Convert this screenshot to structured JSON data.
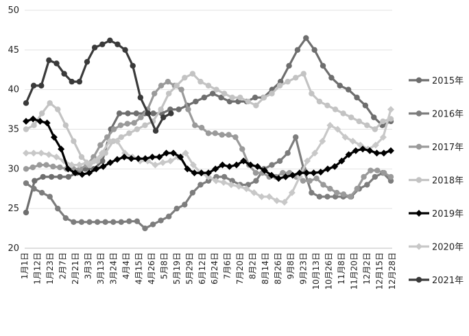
{
  "chart_data": {
    "type": "line",
    "title": "",
    "xlabel": "",
    "ylabel": "",
    "ylim": [
      20,
      50
    ],
    "yticks": [
      20,
      25,
      30,
      35,
      40,
      45,
      50
    ],
    "grid": "horizontal",
    "legend_position": "right",
    "x_tick_labels": [
      "1月1日",
      "1月12日",
      "1月23日",
      "2月7日",
      "2月21日",
      "3月3日",
      "3月13日",
      "3月24日",
      "4月4日",
      "4月15日",
      "4月26日",
      "5月8日",
      "5月19日",
      "5月29日",
      "6月12日",
      "6月24日",
      "7月6日",
      "7月20日",
      "8月2日",
      "8月14日",
      "8月26日",
      "9月8日",
      "9月23日",
      "10月13日",
      "10月26日",
      "11月8日",
      "11月20日",
      "12月2日",
      "12月15日",
      "12月28日"
    ],
    "series": [
      {
        "name": "2015年",
        "color": "#6e6e6e",
        "marker": "circle",
        "values": [
          24.5,
          28.5,
          29,
          29,
          29,
          29,
          29.5,
          30,
          30,
          31,
          35,
          37,
          37,
          37,
          37,
          37,
          37,
          37.5,
          37.5,
          38,
          38.5,
          39,
          39.5,
          39,
          38.5,
          38.5,
          38.5,
          39,
          39,
          40,
          41,
          43,
          45,
          46.5,
          45,
          43,
          41.5,
          40.5,
          40,
          39,
          38,
          36.5,
          35.5,
          36
        ]
      },
      {
        "name": "2016年",
        "color": "#7d7d7d",
        "marker": "circle",
        "values": [
          28.2,
          27.5,
          27,
          26.5,
          25,
          23.8,
          23.3,
          23.3,
          23.3,
          23.3,
          23.3,
          23.3,
          23.3,
          23.4,
          23.4,
          22.5,
          23,
          23.5,
          24,
          25,
          25.5,
          27,
          28,
          28.5,
          29,
          29,
          28.5,
          28,
          28,
          28.5,
          30,
          30.5,
          31,
          32,
          34,
          30,
          27,
          26.5,
          26.5,
          26.5,
          26.5,
          26.5,
          27.5,
          28,
          29,
          29.5,
          28.5
        ]
      },
      {
        "name": "2017年",
        "color": "#9a9a9a",
        "marker": "circle",
        "values": [
          30,
          30.2,
          30.5,
          30.5,
          30.3,
          30.2,
          30,
          30,
          30,
          30.5,
          31.5,
          33,
          34,
          35,
          35.5,
          35.7,
          35.8,
          36.5,
          37.5,
          39.5,
          40.5,
          41,
          40.5,
          40,
          37.5,
          35.5,
          35.2,
          34.5,
          34.5,
          34.3,
          34.3,
          34,
          32.5,
          30.5,
          29.5,
          29.5,
          29,
          29,
          29.5,
          29.5,
          29,
          28.5,
          28.5,
          28.8,
          28,
          27.5,
          27,
          26.8,
          26.5,
          27.5,
          29,
          29.8,
          29.8,
          29.5,
          29
        ]
      },
      {
        "name": "2018年",
        "color": "#c3c3c3",
        "marker": "circle",
        "values": [
          35,
          35.5,
          37,
          38.3,
          37.5,
          35.5,
          33.5,
          31.5,
          30.5,
          31,
          32,
          33.5,
          34,
          34.5,
          35,
          35.5,
          36,
          37.5,
          39.5,
          40.5,
          41.5,
          42,
          41,
          40.5,
          40,
          39.5,
          39,
          39,
          38.5,
          38,
          39,
          39.5,
          40.5,
          41,
          41.5,
          42,
          39.5,
          38.5,
          38,
          37.5,
          37,
          36.5,
          36,
          35.5,
          35,
          36,
          36.3
        ]
      },
      {
        "name": "2019年",
        "color": "#000000",
        "marker": "diamond",
        "values": [
          36,
          36.3,
          36,
          35.8,
          34,
          32.5,
          30,
          29.5,
          29.3,
          29.5,
          30,
          30.3,
          30.8,
          31.2,
          31.5,
          31.3,
          31.3,
          31.3,
          31.5,
          31.5,
          32,
          32,
          31.5,
          30,
          29.5,
          29.5,
          29.5,
          30,
          30.5,
          30.3,
          30.5,
          31,
          30.5,
          30.3,
          29.8,
          29.2,
          28.8,
          29,
          29.2,
          29.5,
          29.5,
          29.5,
          29.6,
          30,
          30.3,
          31,
          31.8,
          32.3,
          32.5,
          32.3,
          32,
          32,
          32.3
        ]
      },
      {
        "name": "2020年",
        "color": "#c8c8c8",
        "marker": "diamond",
        "values": [
          32,
          32,
          32,
          31.8,
          31.5,
          31,
          30.5,
          30.5,
          30.8,
          31,
          32,
          33.5,
          33.5,
          32,
          31.5,
          31,
          31,
          30.5,
          30.8,
          31,
          31.5,
          32,
          30.5,
          29.5,
          29,
          28.5,
          28.3,
          28,
          27.8,
          27.5,
          27,
          26.5,
          26.5,
          26,
          25.8,
          27,
          29,
          31,
          32,
          33.5,
          35.5,
          35,
          34,
          33.5,
          33,
          32.5,
          33,
          34,
          37.5
        ]
      },
      {
        "name": "2021年",
        "color": "#3a3a3a",
        "marker": "circle",
        "values": [
          38.3,
          40.5,
          40.5,
          43.7,
          43.3,
          42,
          41,
          41,
          43.5,
          45.3,
          45.7,
          46.2,
          45.7,
          45,
          43,
          39,
          37,
          34.8,
          36.5,
          37
        ]
      }
    ]
  }
}
